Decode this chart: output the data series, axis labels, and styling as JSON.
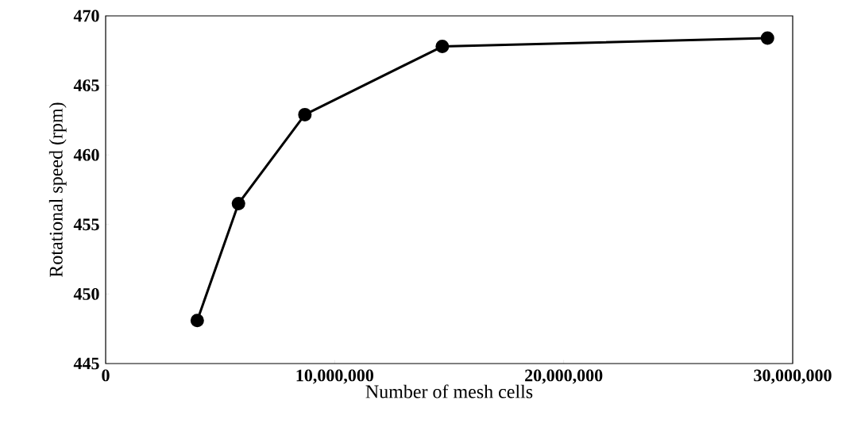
{
  "chart_data": {
    "type": "line",
    "xlabel": "Number of mesh cells",
    "ylabel": "Rotational speed (rpm)",
    "x": [
      4000000,
      5800000,
      8700000,
      14700000,
      28900000
    ],
    "series": [
      {
        "color": "#000000",
        "values": [
          448.1,
          456.5,
          462.9,
          467.8,
          468.4
        ]
      }
    ],
    "xlim": [
      0,
      30000000
    ],
    "ylim": [
      445,
      470
    ],
    "xticks": [
      0,
      {
        "value": 10000000,
        "label": "10,000,000"
      },
      {
        "value": 20000000,
        "label": "20,000,000"
      },
      {
        "value": 30000000,
        "label": "30,000,000"
      }
    ],
    "yticks": [
      445,
      450,
      455,
      460,
      465,
      470
    ],
    "marker": "circle",
    "line_style": "solid"
  }
}
